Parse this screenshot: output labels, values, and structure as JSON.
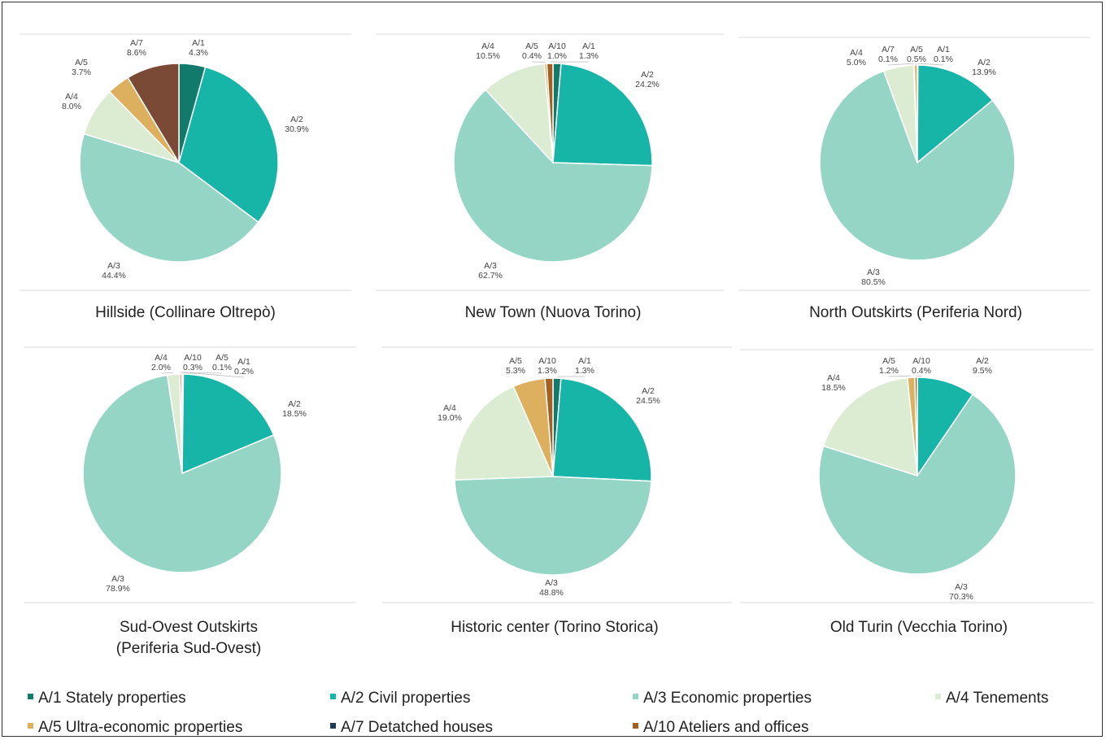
{
  "colors": {
    "A/1": "#117a6a",
    "A/2": "#17b5a8",
    "A/3": "#95d5c5",
    "A/4": "#dcecd3",
    "A/5": "#ddb060",
    "A/7": "#1f3a5a",
    "A/10": "#a65f22",
    "A/7_hillside": "#7a4a36"
  },
  "legend": [
    {
      "code": "A/1",
      "label": "A/1 Stately properties"
    },
    {
      "code": "A/2",
      "label": "A/2 Civil properties"
    },
    {
      "code": "A/3",
      "label": "A/3 Economic properties"
    },
    {
      "code": "A/4",
      "label": "A/4 Tenements"
    },
    {
      "code": "A/5",
      "label": "A/5 Ultra-economic properties"
    },
    {
      "code": "A/7",
      "label": "A/7 Detatched houses"
    },
    {
      "code": "A/10",
      "label": "A/10 Ateliers and offices"
    }
  ],
  "chart_data": [
    {
      "type": "pie",
      "title": "Hillside (Collinare Oltrepò)",
      "slices": [
        {
          "name": "A/1",
          "value": 4.3,
          "label": "4.3%"
        },
        {
          "name": "A/2",
          "value": 30.9,
          "label": "30.9%"
        },
        {
          "name": "A/3",
          "value": 44.4,
          "label": "44.4%"
        },
        {
          "name": "A/4",
          "value": 8.0,
          "label": "8.0%"
        },
        {
          "name": "A/5",
          "value": 3.7,
          "label": "3.7%"
        },
        {
          "name": "A/7",
          "value": 8.6,
          "label": "8.6%"
        }
      ]
    },
    {
      "type": "pie",
      "title": "New Town (Nuova Torino)",
      "slices": [
        {
          "name": "A/1",
          "value": 1.3,
          "label": "1.3%"
        },
        {
          "name": "A/2",
          "value": 24.2,
          "label": "24.2%"
        },
        {
          "name": "A/3",
          "value": 62.7,
          "label": "62.7%"
        },
        {
          "name": "A/4",
          "value": 10.5,
          "label": "10.5%"
        },
        {
          "name": "A/5",
          "value": 0.4,
          "label": "0.4%"
        },
        {
          "name": "A/10",
          "value": 1.0,
          "label": "1.0%"
        }
      ]
    },
    {
      "type": "pie",
      "title": "North Outskirts (Periferia Nord)",
      "slices": [
        {
          "name": "A/1",
          "value": 0.1,
          "label": "0.1%"
        },
        {
          "name": "A/2",
          "value": 13.9,
          "label": "13.9%"
        },
        {
          "name": "A/3",
          "value": 80.5,
          "label": "80.5%"
        },
        {
          "name": "A/4",
          "value": 5.0,
          "label": "5.0%"
        },
        {
          "name": "A/7",
          "value": 0.1,
          "label": "0.1%"
        },
        {
          "name": "A/5",
          "value": 0.5,
          "label": "0.5%"
        }
      ]
    },
    {
      "type": "pie",
      "title": [
        "Sud-Ovest Outskirts",
        "(Periferia Sud-Ovest)"
      ],
      "slices": [
        {
          "name": "A/1",
          "value": 0.2,
          "label": "0.2%"
        },
        {
          "name": "A/2",
          "value": 18.5,
          "label": "18.5%"
        },
        {
          "name": "A/3",
          "value": 78.9,
          "label": "78.9%"
        },
        {
          "name": "A/4",
          "value": 2.0,
          "label": "2.0%"
        },
        {
          "name": "A/10",
          "value": 0.3,
          "label": "0.3%"
        },
        {
          "name": "A/5",
          "value": 0.1,
          "label": "0.1%"
        }
      ]
    },
    {
      "type": "pie",
      "title": "Historic center (Torino Storica)",
      "slices": [
        {
          "name": "A/1",
          "value": 1.3,
          "label": "1.3%"
        },
        {
          "name": "A/2",
          "value": 24.5,
          "label": "24.5%"
        },
        {
          "name": "A/3",
          "value": 48.8,
          "label": "48.8%"
        },
        {
          "name": "A/4",
          "value": 19.0,
          "label": "19.0%"
        },
        {
          "name": "A/5",
          "value": 5.3,
          "label": "5.3%"
        },
        {
          "name": "A/10",
          "value": 1.3,
          "label": "1.3%"
        }
      ]
    },
    {
      "type": "pie",
      "title": "Old Turin (Vecchia Torino)",
      "slices": [
        {
          "name": "A/2",
          "value": 9.5,
          "label": "9.5%"
        },
        {
          "name": "A/3",
          "value": 70.3,
          "label": "70.3%"
        },
        {
          "name": "A/4",
          "value": 18.5,
          "label": "18.5%"
        },
        {
          "name": "A/5",
          "value": 1.2,
          "label": "1.2%"
        },
        {
          "name": "A/10",
          "value": 0.4,
          "label": "0.4%"
        }
      ]
    }
  ]
}
